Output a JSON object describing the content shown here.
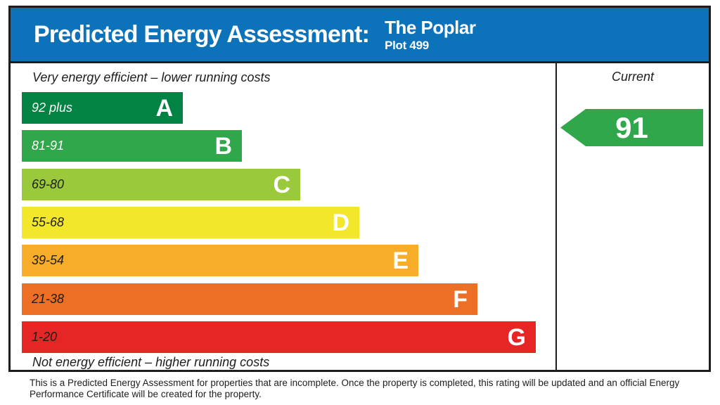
{
  "header": {
    "title": "Predicted Energy Assessment:",
    "property_name": "The Poplar",
    "plot": "Plot 499",
    "background_color": "#0c72ba"
  },
  "chart_data": {
    "type": "bar",
    "title": "Predicted Energy Assessment: The Poplar Plot 499",
    "top_caption": "Very energy efficient – lower running costs",
    "bottom_caption": "Not energy efficient – higher running costs",
    "legend_position": "none",
    "grid": false,
    "bands": [
      {
        "letter": "A",
        "range": "92 plus",
        "color": "#038343",
        "label_color": "#ffffff"
      },
      {
        "letter": "B",
        "range": "81-91",
        "color": "#2fa74a",
        "label_color": "#ffffff"
      },
      {
        "letter": "C",
        "range": "69-80",
        "color": "#9aca3c",
        "label_color": "#1d1d1b"
      },
      {
        "letter": "D",
        "range": "55-68",
        "color": "#f2e72b",
        "label_color": "#1d1d1b"
      },
      {
        "letter": "E",
        "range": "39-54",
        "color": "#f8ad29",
        "label_color": "#1d1d1b"
      },
      {
        "letter": "F",
        "range": "21-38",
        "color": "#ed6f26",
        "label_color": "#1d1d1b"
      },
      {
        "letter": "G",
        "range": "1-20",
        "color": "#e52625",
        "label_color": "#1d1d1b"
      }
    ],
    "current": {
      "column_label": "Current",
      "value": "91",
      "band": "B",
      "arrow_color": "#2fa74a"
    }
  },
  "footer": {
    "text": "This is a Predicted Energy Assessment for properties that are incomplete. Once the property is completed, this rating will be updated and an official Energy Performance Certificate will be created for the property."
  }
}
